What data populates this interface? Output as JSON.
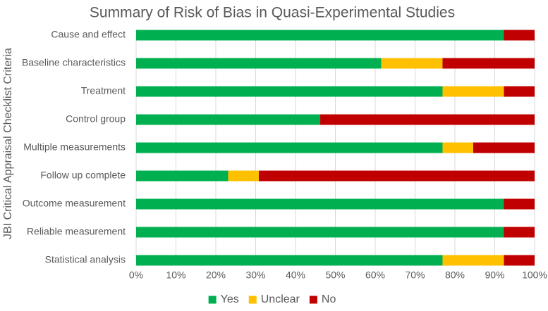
{
  "chart_data": {
    "type": "bar",
    "orientation": "horizontal",
    "stacked": true,
    "percent": true,
    "title": "Summary of Risk of Bias in Quasi-Experimental Studies",
    "xlabel": "",
    "ylabel": "JBI Critical Appraisal Checklist Criteria",
    "xlim": [
      0,
      100
    ],
    "xticks": [
      "0%",
      "10%",
      "20%",
      "30%",
      "40%",
      "50%",
      "60%",
      "70%",
      "80%",
      "90%",
      "100%"
    ],
    "categories": [
      "Cause and effect",
      "Baseline characteristics",
      "Treatment",
      "Control group",
      "Multiple measurements",
      "Follow up complete",
      "Outcome measurement",
      "Reliable measurement",
      "Statistical analysis"
    ],
    "series": [
      {
        "name": "Yes",
        "color": "#00b050",
        "values": [
          92.3,
          61.5,
          76.9,
          46.2,
          76.9,
          23.1,
          92.3,
          92.3,
          76.9
        ]
      },
      {
        "name": "Unclear",
        "color": "#ffc000",
        "values": [
          0,
          15.4,
          15.4,
          0,
          7.7,
          7.7,
          0,
          0,
          15.4
        ]
      },
      {
        "name": "No",
        "color": "#c00000",
        "values": [
          7.7,
          23.1,
          7.7,
          53.8,
          15.4,
          69.2,
          7.7,
          7.7,
          7.7
        ]
      }
    ],
    "legend_position": "bottom",
    "grid": true
  }
}
